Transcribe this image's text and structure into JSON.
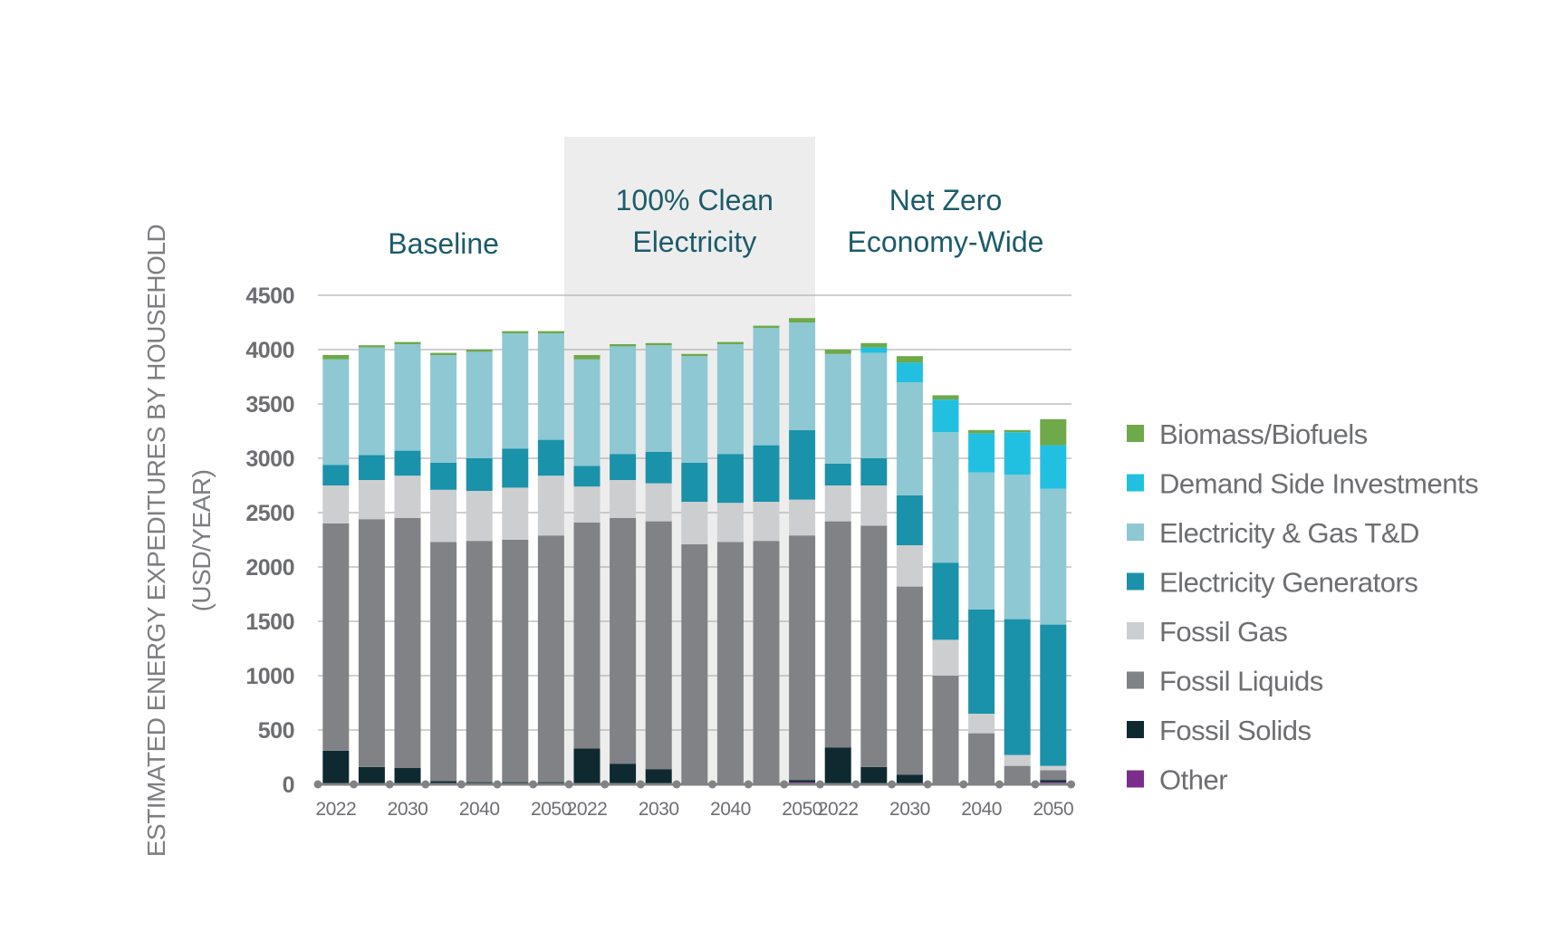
{
  "chart_data": {
    "type": "bar",
    "stacked": true,
    "ylabel": [
      "ESTIMATED ENERGY EXPEDITURES BY HOUSEHOLD",
      "(USD/YEAR)"
    ],
    "ylim": [
      0,
      4500
    ],
    "yticks": [
      0,
      500,
      1000,
      1500,
      2000,
      2500,
      3000,
      3500,
      4000,
      4500
    ],
    "grid": true,
    "legend_position": "right",
    "groups": [
      {
        "label": "Baseline",
        "highlight": false,
        "xtick_labels": [
          "2022",
          "",
          "2030",
          "",
          "2040",
          "",
          "2050"
        ]
      },
      {
        "label": "100% Clean Electricity",
        "highlight": true,
        "xtick_labels": [
          "2022",
          "",
          "2030",
          "",
          "2040",
          "",
          "2050"
        ]
      },
      {
        "label": "Net Zero Economy-Wide",
        "highlight": false,
        "xtick_labels": [
          "2022",
          "",
          "2030",
          "",
          "2040",
          "",
          "2050"
        ]
      }
    ],
    "categories": [
      "Baseline 2022",
      "Baseline 2025",
      "Baseline 2030",
      "Baseline 2035",
      "Baseline 2040",
      "Baseline 2045",
      "Baseline 2050",
      "100% Clean Electricity 2022",
      "100% Clean Electricity 2025",
      "100% Clean Electricity 2030",
      "100% Clean Electricity 2035",
      "100% Clean Electricity 2040",
      "100% Clean Electricity 2045",
      "100% Clean Electricity 2050",
      "Net Zero Economy-Wide 2022",
      "Net Zero Economy-Wide 2025",
      "Net Zero Economy-Wide 2030",
      "Net Zero Economy-Wide 2035",
      "Net Zero Economy-Wide 2040",
      "Net Zero Economy-Wide 2045",
      "Net Zero Economy-Wide 2050"
    ],
    "series": [
      {
        "name": "Other",
        "color": "#7b2d8e",
        "values": [
          0,
          0,
          0,
          0,
          0,
          0,
          0,
          0,
          0,
          0,
          0,
          0,
          0,
          20,
          0,
          0,
          0,
          0,
          0,
          0,
          20
        ]
      },
      {
        "name": "Fossil Solids",
        "color": "#0e2a30",
        "values": [
          310,
          160,
          150,
          30,
          20,
          20,
          20,
          330,
          190,
          140,
          0,
          0,
          0,
          20,
          340,
          160,
          90,
          0,
          0,
          0,
          20
        ]
      },
      {
        "name": "Fossil Liquids",
        "color": "#808285",
        "values": [
          2090,
          2280,
          2300,
          2200,
          2220,
          2230,
          2270,
          2080,
          2260,
          2280,
          2210,
          2230,
          2240,
          2250,
          2080,
          2220,
          1730,
          1000,
          470,
          170,
          90
        ]
      },
      {
        "name": "Fossil Gas",
        "color": "#cdced0",
        "values": [
          350,
          360,
          390,
          480,
          460,
          480,
          550,
          330,
          350,
          350,
          390,
          360,
          360,
          330,
          330,
          370,
          380,
          330,
          180,
          100,
          40
        ]
      },
      {
        "name": "Electricity Generators",
        "color": "#1a92aa",
        "values": [
          190,
          230,
          230,
          250,
          300,
          360,
          330,
          190,
          240,
          290,
          360,
          450,
          520,
          640,
          200,
          250,
          460,
          710,
          960,
          1250,
          1300
        ]
      },
      {
        "name": "Electricity & Gas T&D",
        "color": "#8ec8d2",
        "values": [
          970,
          990,
          980,
          990,
          980,
          1060,
          980,
          980,
          990,
          980,
          980,
          1010,
          1080,
          990,
          1010,
          970,
          1040,
          1200,
          1260,
          1330,
          1250
        ]
      },
      {
        "name": "Demand Side Investments",
        "color": "#22c0e0",
        "values": [
          0,
          0,
          0,
          0,
          0,
          0,
          0,
          0,
          0,
          0,
          0,
          0,
          0,
          0,
          0,
          50,
          180,
          300,
          360,
          390,
          400
        ]
      },
      {
        "name": "Biomass/Biofuels",
        "color": "#6ea94a",
        "values": [
          40,
          20,
          20,
          20,
          20,
          20,
          20,
          40,
          20,
          20,
          20,
          20,
          20,
          40,
          40,
          40,
          60,
          40,
          30,
          20,
          240
        ]
      }
    ]
  }
}
